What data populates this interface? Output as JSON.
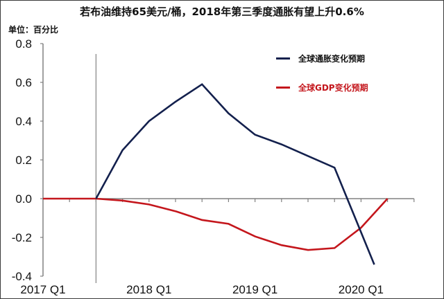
{
  "title": "若布油维持65美元/桶，2018年第三季度通胀有望上升0.6%",
  "unit_label": "单位：百分比",
  "legend": [
    {
      "label": "全球通胀变化预期",
      "color": "#13204d"
    },
    {
      "label": "全球GDP变化预期",
      "color": "#c4161c"
    }
  ],
  "chart_data": {
    "type": "line",
    "title": "若布油维持65美元/桶，2018年第三季度通胀有望上升0.6%",
    "ylabel": "单位：百分比",
    "xlabel": "",
    "ylim": [
      -0.4,
      0.8
    ],
    "yticks": [
      0.8,
      0.6,
      0.4,
      0.2,
      0.0,
      -0.2,
      -0.4
    ],
    "ytick_labels": [
      "0.8",
      "0.6",
      "0.4",
      "0.2",
      "0.0",
      "-0.2",
      "-0.4"
    ],
    "xtick_labels": [
      "2017 Q1",
      "2018 Q1",
      "2019 Q1",
      "2020 Q1"
    ],
    "x": [
      "2017 Q1",
      "2017 Q2",
      "2017 Q3",
      "2017 Q4",
      "2018 Q1",
      "2018 Q2",
      "2018 Q3",
      "2018 Q4",
      "2019 Q1",
      "2019 Q2",
      "2019 Q3",
      "2019 Q4",
      "2020 Q1",
      "2020 Q2",
      "2020 Q3"
    ],
    "reference_line_x": "2017 Q3",
    "grid": false,
    "legend_position": "upper right",
    "series": [
      {
        "name": "全球通胀变化预期",
        "color": "#13204d",
        "points": [
          {
            "x": "2017 Q3",
            "y": 0.0
          },
          {
            "x": "2017 Q4",
            "y": 0.25
          },
          {
            "x": "2018 Q1",
            "y": 0.4
          },
          {
            "x": "2018 Q2",
            "y": 0.5
          },
          {
            "x": "2018 Q3",
            "y": 0.59
          },
          {
            "x": "2018 Q4",
            "y": 0.44
          },
          {
            "x": "2019 Q1",
            "y": 0.33
          },
          {
            "x": "2019 Q2",
            "y": 0.28
          },
          {
            "x": "2019 Q3",
            "y": 0.22
          },
          {
            "x": "2019 Q4",
            "y": 0.16
          },
          {
            "x": "2020 Q1.5",
            "y": -0.34
          }
        ]
      },
      {
        "name": "全球GDP变化预期",
        "color": "#c4161c",
        "points": [
          {
            "x": "2017 Q1",
            "y": 0.0
          },
          {
            "x": "2017 Q3",
            "y": 0.0
          },
          {
            "x": "2017 Q4",
            "y": -0.01
          },
          {
            "x": "2018 Q1",
            "y": -0.03
          },
          {
            "x": "2018 Q2",
            "y": -0.065
          },
          {
            "x": "2018 Q3",
            "y": -0.11
          },
          {
            "x": "2018 Q4",
            "y": -0.13
          },
          {
            "x": "2019 Q1",
            "y": -0.195
          },
          {
            "x": "2019 Q2",
            "y": -0.24
          },
          {
            "x": "2019 Q3",
            "y": -0.265
          },
          {
            "x": "2019 Q4",
            "y": -0.255
          },
          {
            "x": "2020 Q1",
            "y": -0.15
          },
          {
            "x": "2020 Q2",
            "y": 0.0
          }
        ]
      }
    ]
  }
}
